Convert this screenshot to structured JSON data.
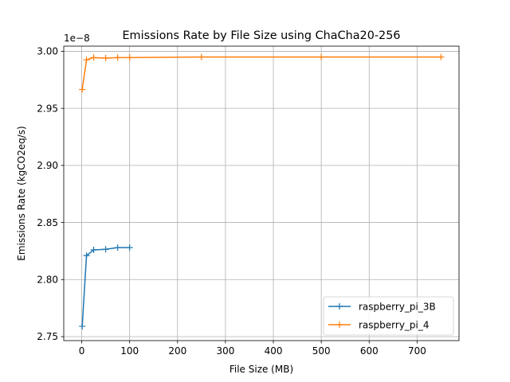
{
  "chart_data": {
    "type": "line",
    "title": "Emissions Rate by File Size using ChaCha20-256",
    "xlabel": "File Size (MB)",
    "ylabel": "Emissions Rate (kgCO2eq/s)",
    "y_offset_label": "1e−8",
    "xlim": [
      -37.5,
      787.5
    ],
    "ylim": [
      2.7465,
      3.0045
    ],
    "x_ticks": [
      0,
      100,
      200,
      300,
      400,
      500,
      600,
      700
    ],
    "x_tick_labels": [
      "0",
      "100",
      "200",
      "300",
      "400",
      "500",
      "600",
      "700"
    ],
    "y_ticks": [
      2.75,
      2.8,
      2.85,
      2.9,
      2.95,
      3.0
    ],
    "y_tick_labels": [
      "2.75",
      "2.80",
      "2.85",
      "2.90",
      "2.95",
      "3.00"
    ],
    "grid": true,
    "legend_position": "lower-right",
    "marker": "+",
    "series": [
      {
        "name": "raspberry_pi_3B",
        "color": "#1f77b4",
        "x": [
          1,
          10,
          25,
          50,
          75,
          100
        ],
        "y": [
          2.759,
          2.821,
          2.826,
          2.8265,
          2.828,
          2.828
        ]
      },
      {
        "name": "raspberry_pi_4",
        "color": "#ff7f0e",
        "x": [
          1,
          10,
          25,
          50,
          75,
          100,
          250,
          500,
          750
        ],
        "y": [
          2.9665,
          2.9925,
          2.9945,
          2.994,
          2.9945,
          2.9945,
          2.995,
          2.995,
          2.995
        ]
      }
    ]
  }
}
